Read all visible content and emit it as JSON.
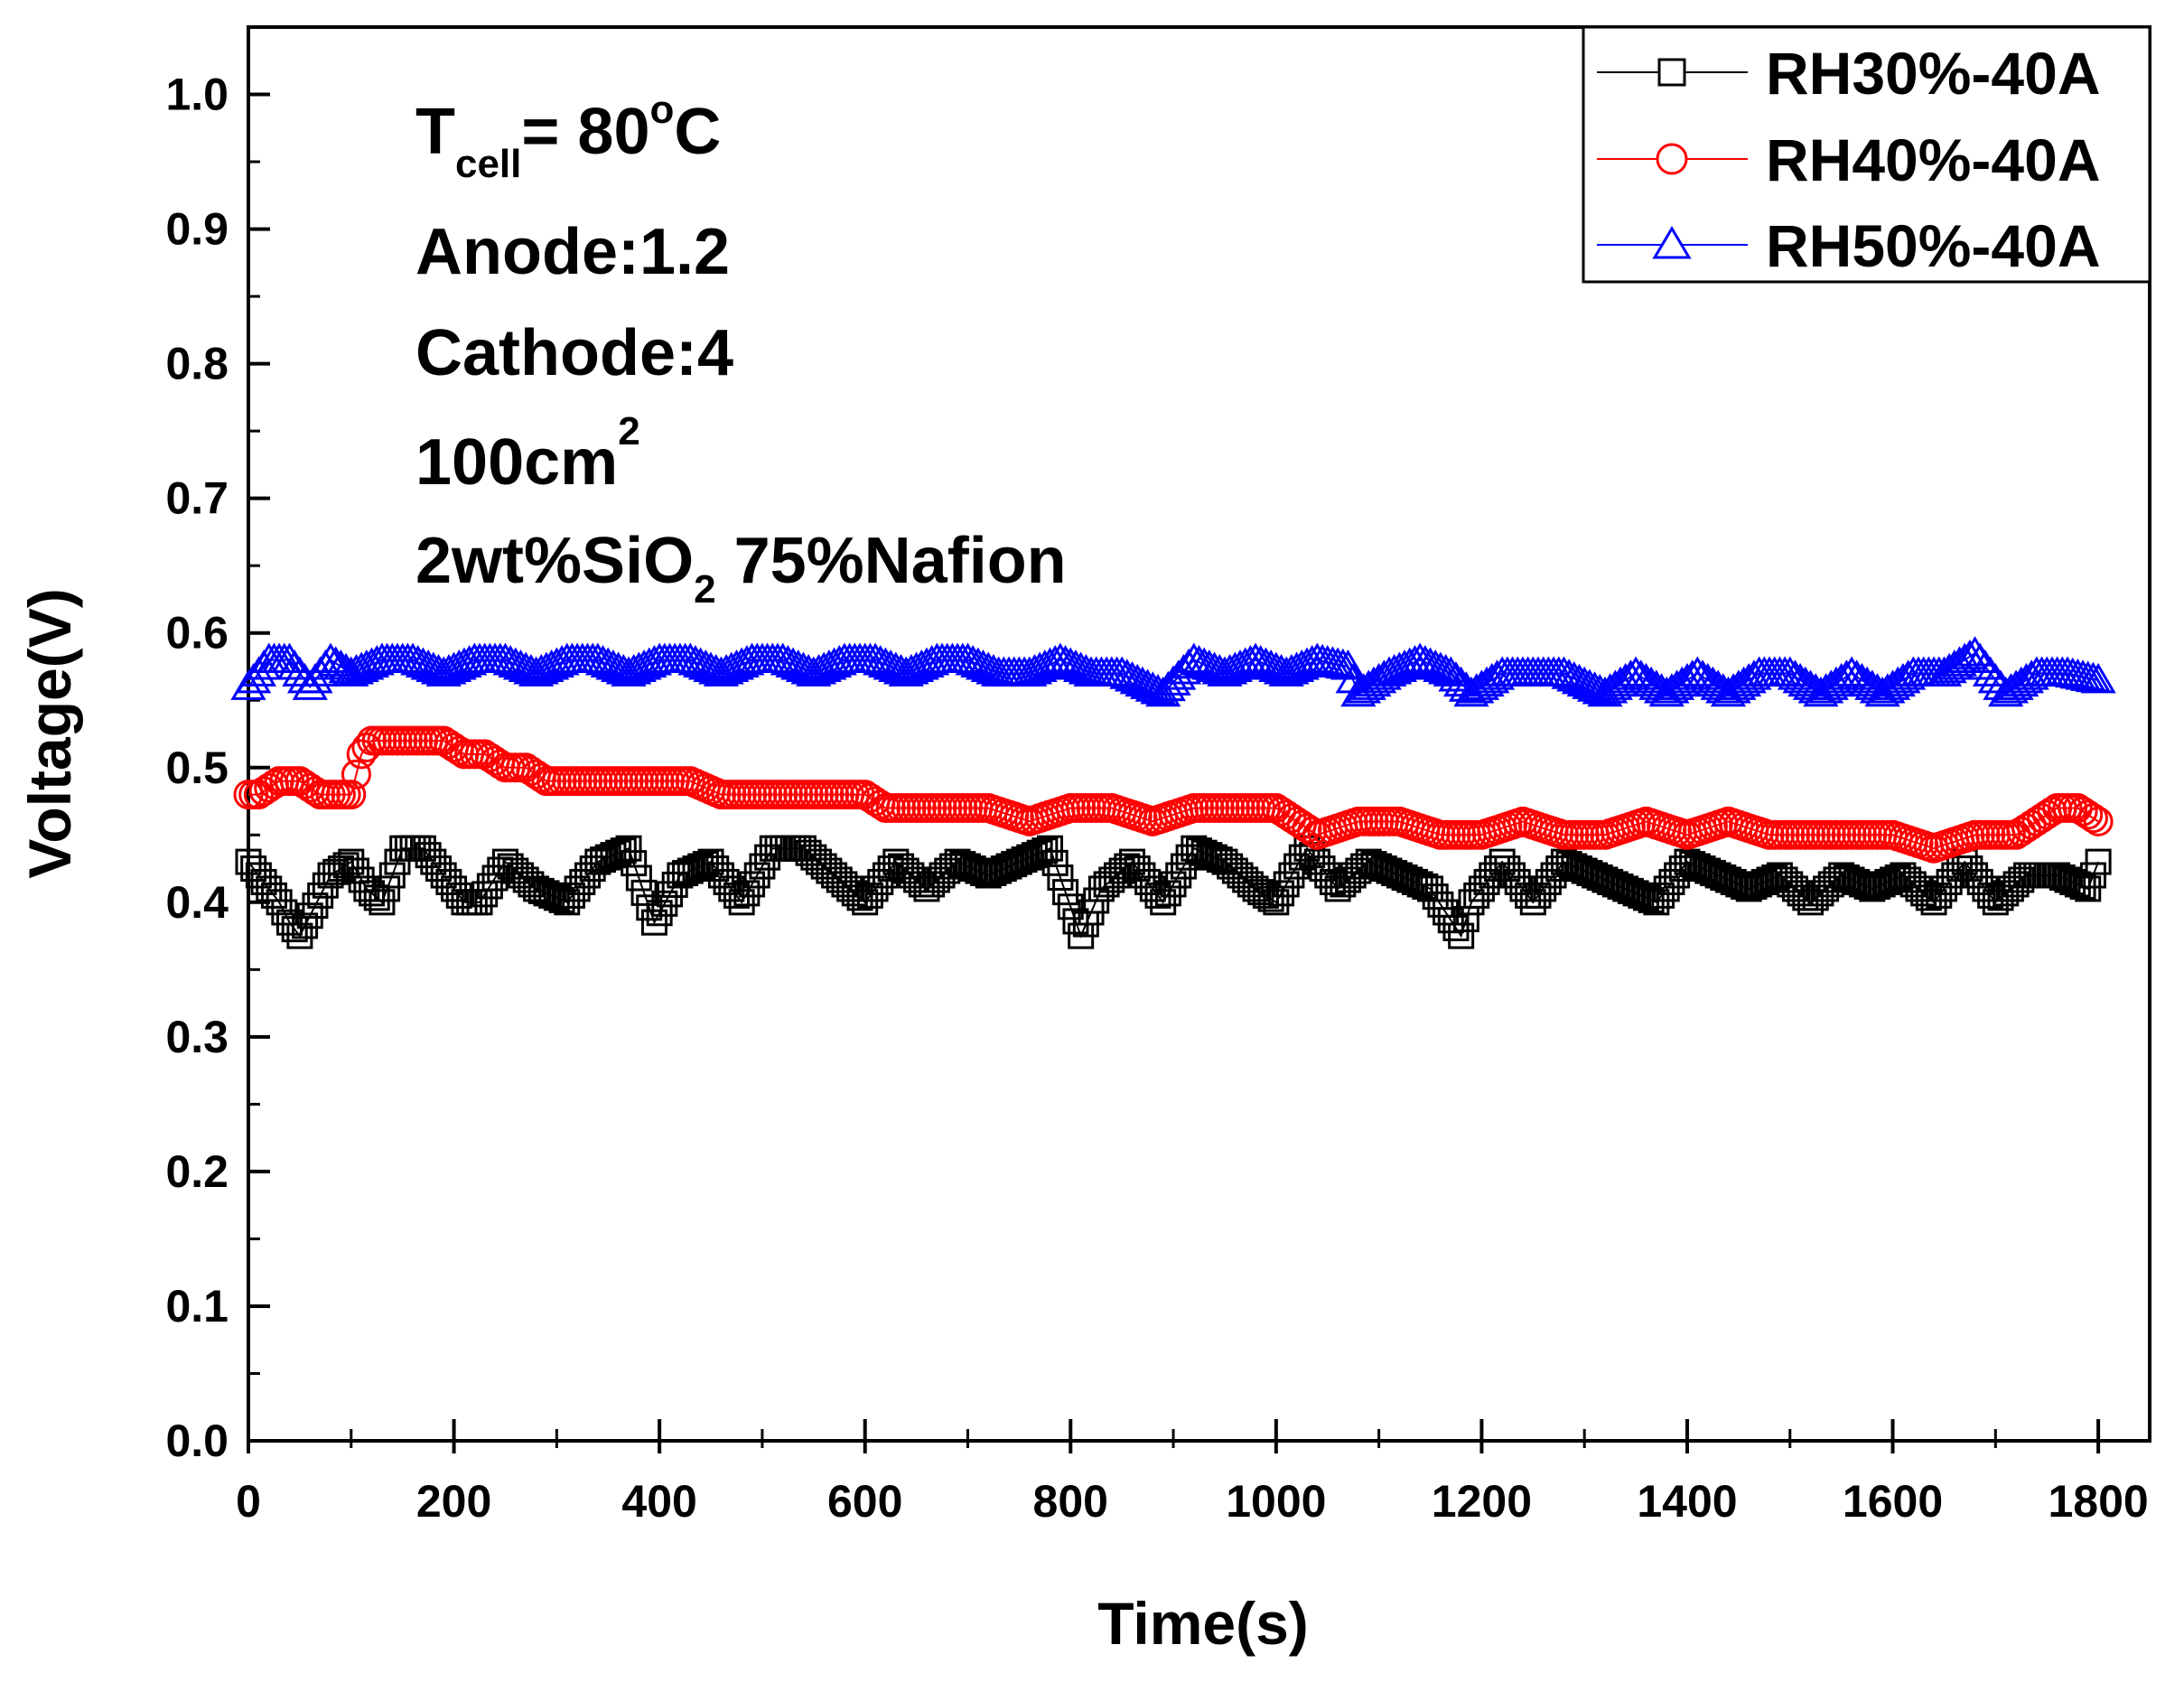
{
  "chart_data": {
    "type": "scatter",
    "xlabel": "Time(s)",
    "ylabel": "Voltage(V)",
    "xlim": [
      0,
      1850
    ],
    "ylim": [
      0,
      1.05
    ],
    "x_ticks": [
      "0",
      "200",
      "400",
      "600",
      "800",
      "1000",
      "1200",
      "1400",
      "1600",
      "1800"
    ],
    "y_ticks": [
      "0.0",
      "0.1",
      "0.2",
      "0.3",
      "0.4",
      "0.5",
      "0.6",
      "0.7",
      "0.8",
      "0.9",
      "1.0"
    ],
    "grid": false,
    "legend_position": "top-right",
    "annotation": {
      "tcell_prefix": "T",
      "tcell_sub": "cell",
      "tcell_value": "= 80",
      "tcell_degree": "o",
      "tcell_unit": "C",
      "anode": "Anode:1.2",
      "cathode": "Cathode:4",
      "area_main": "100cm",
      "area_sup": "2",
      "membrane_prefix": "2wt%SiO",
      "membrane_sub": "2",
      "membrane_suffix": " 75%Nafion"
    },
    "series": [
      {
        "name": "RH30%-40A",
        "color": "#000000",
        "marker": "square",
        "x": [
          0,
          10,
          20,
          30,
          40,
          50,
          60,
          80,
          100,
          115,
          130,
          150,
          170,
          190,
          210,
          225,
          250,
          280,
          310,
          340,
          370,
          395,
          420,
          450,
          480,
          510,
          540,
          570,
          600,
          630,
          660,
          690,
          720,
          750,
          780,
          810,
          830,
          860,
          890,
          920,
          950,
          980,
          1000,
          1030,
          1060,
          1090,
          1120,
          1150,
          1180,
          1190,
          1220,
          1250,
          1280,
          1310,
          1340,
          1370,
          1400,
          1430,
          1460,
          1490,
          1520,
          1550,
          1580,
          1610,
          1640,
          1670,
          1700,
          1730,
          1760,
          1790,
          1800
        ],
        "values": [
          0.43,
          0.42,
          0.41,
          0.4,
          0.385,
          0.375,
          0.39,
          0.42,
          0.43,
          0.41,
          0.4,
          0.44,
          0.44,
          0.42,
          0.4,
          0.4,
          0.43,
          0.41,
          0.4,
          0.43,
          0.44,
          0.385,
          0.42,
          0.43,
          0.4,
          0.44,
          0.44,
          0.42,
          0.4,
          0.43,
          0.41,
          0.43,
          0.42,
          0.43,
          0.44,
          0.375,
          0.41,
          0.43,
          0.4,
          0.44,
          0.43,
          0.41,
          0.4,
          0.44,
          0.41,
          0.43,
          0.42,
          0.41,
          0.375,
          0.4,
          0.43,
          0.4,
          0.43,
          0.42,
          0.41,
          0.4,
          0.43,
          0.42,
          0.41,
          0.42,
          0.4,
          0.42,
          0.41,
          0.42,
          0.4,
          0.43,
          0.4,
          0.42,
          0.42,
          0.41,
          0.43
        ]
      },
      {
        "name": "RH40%-40A",
        "color": "#ff0000",
        "marker": "circle",
        "x": [
          0,
          10,
          30,
          50,
          70,
          90,
          100,
          110,
          120,
          130,
          150,
          170,
          190,
          210,
          230,
          250,
          270,
          290,
          310,
          340,
          370,
          400,
          430,
          460,
          490,
          520,
          560,
          600,
          620,
          640,
          680,
          720,
          760,
          800,
          840,
          880,
          920,
          960,
          1000,
          1020,
          1040,
          1080,
          1120,
          1160,
          1200,
          1240,
          1280,
          1320,
          1360,
          1400,
          1440,
          1480,
          1520,
          1560,
          1600,
          1640,
          1680,
          1720,
          1740,
          1760,
          1780,
          1800
        ],
        "values": [
          0.48,
          0.48,
          0.49,
          0.49,
          0.48,
          0.48,
          0.48,
          0.51,
          0.52,
          0.52,
          0.52,
          0.52,
          0.52,
          0.51,
          0.51,
          0.5,
          0.5,
          0.49,
          0.49,
          0.49,
          0.49,
          0.49,
          0.49,
          0.48,
          0.48,
          0.48,
          0.48,
          0.48,
          0.47,
          0.47,
          0.47,
          0.47,
          0.46,
          0.47,
          0.47,
          0.46,
          0.47,
          0.47,
          0.47,
          0.46,
          0.45,
          0.46,
          0.46,
          0.45,
          0.45,
          0.46,
          0.45,
          0.45,
          0.46,
          0.45,
          0.46,
          0.45,
          0.45,
          0.45,
          0.45,
          0.44,
          0.45,
          0.45,
          0.46,
          0.47,
          0.47,
          0.46
        ]
      },
      {
        "name": "RH50%-40A",
        "color": "#0000ff",
        "marker": "triangle",
        "x": [
          0,
          20,
          40,
          60,
          80,
          100,
          130,
          160,
          190,
          220,
          250,
          280,
          310,
          340,
          370,
          400,
          430,
          460,
          490,
          520,
          550,
          580,
          610,
          640,
          670,
          700,
          730,
          760,
          790,
          820,
          850,
          890,
          920,
          950,
          980,
          1010,
          1040,
          1070,
          1080,
          1110,
          1140,
          1170,
          1190,
          1220,
          1250,
          1280,
          1320,
          1350,
          1380,
          1410,
          1440,
          1470,
          1500,
          1530,
          1560,
          1590,
          1620,
          1650,
          1680,
          1710,
          1740,
          1770,
          1800
        ],
        "values": [
          0.56,
          0.58,
          0.58,
          0.56,
          0.58,
          0.57,
          0.58,
          0.58,
          0.57,
          0.58,
          0.58,
          0.57,
          0.58,
          0.58,
          0.57,
          0.58,
          0.58,
          0.57,
          0.58,
          0.58,
          0.57,
          0.58,
          0.58,
          0.57,
          0.58,
          0.58,
          0.57,
          0.57,
          0.58,
          0.57,
          0.57,
          0.555,
          0.58,
          0.57,
          0.58,
          0.57,
          0.58,
          0.575,
          0.555,
          0.57,
          0.58,
          0.57,
          0.555,
          0.57,
          0.57,
          0.57,
          0.555,
          0.57,
          0.555,
          0.57,
          0.555,
          0.57,
          0.57,
          0.555,
          0.57,
          0.555,
          0.57,
          0.57,
          0.585,
          0.555,
          0.57,
          0.57,
          0.565
        ]
      }
    ]
  }
}
